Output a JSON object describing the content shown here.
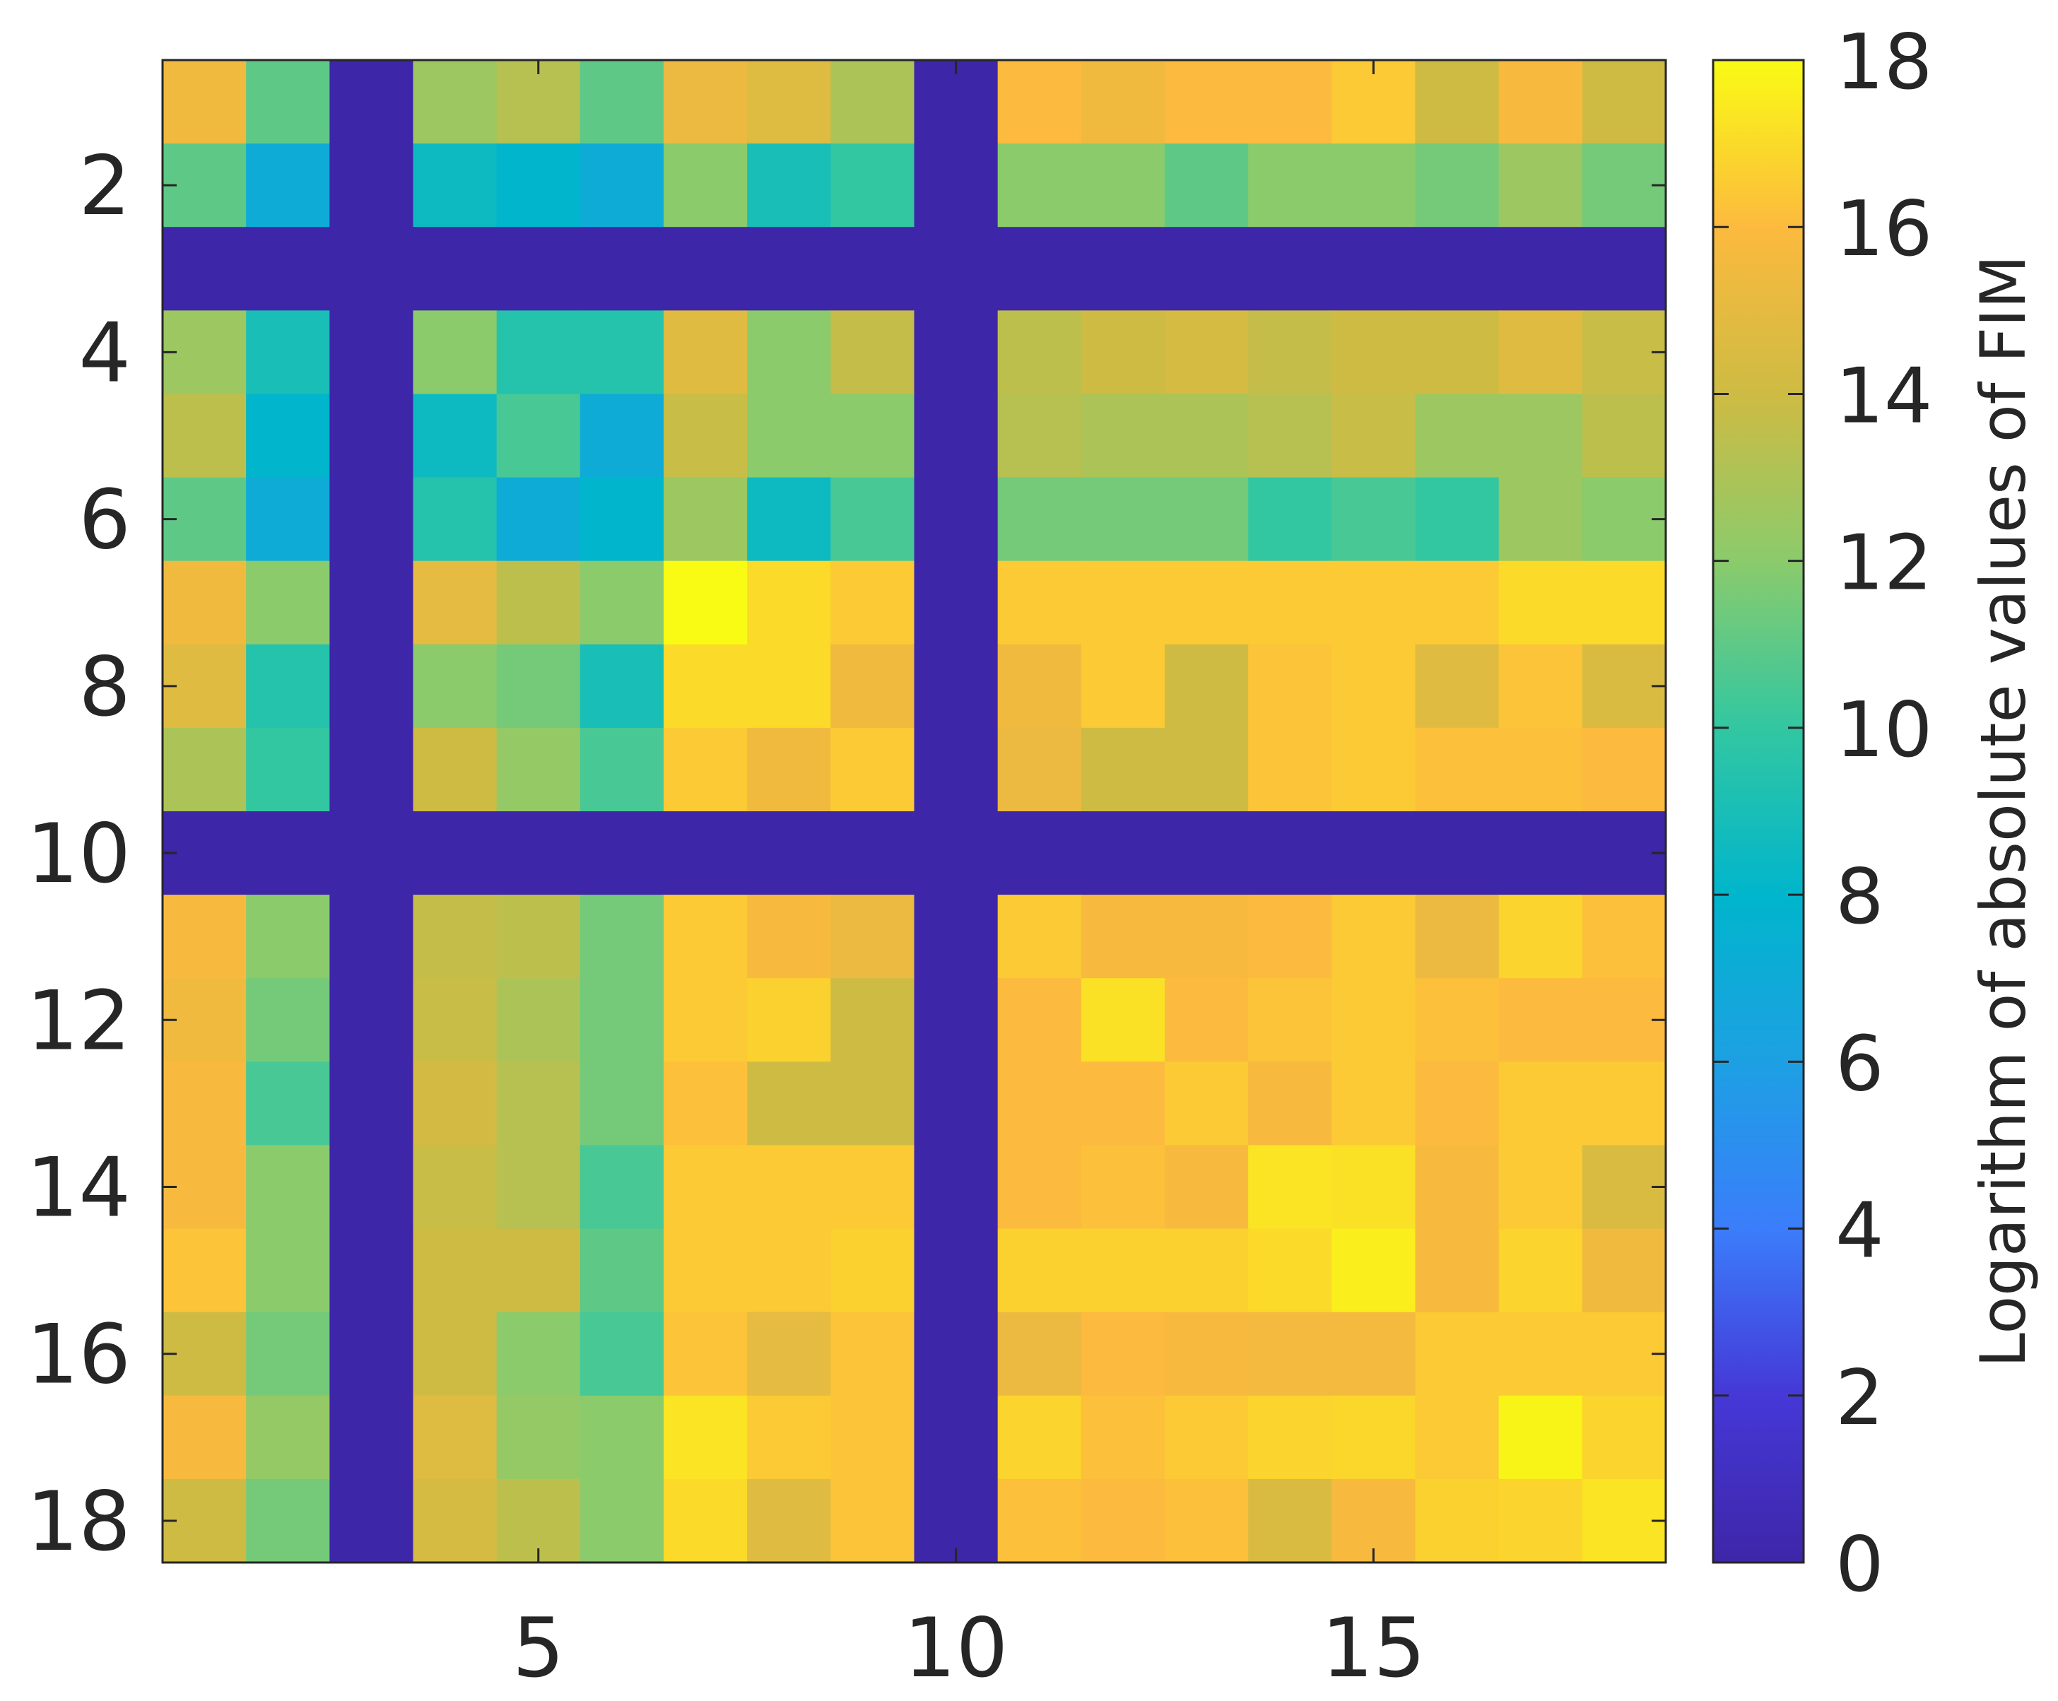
{
  "chart_data": {
    "type": "heatmap",
    "title": "",
    "xlabel": "",
    "ylabel": "",
    "colorbar_label": "Logarithm of absolute values of FIM",
    "clim": [
      0,
      18
    ],
    "x_ticks": [
      5,
      10,
      15
    ],
    "y_ticks": [
      2,
      4,
      6,
      8,
      10,
      12,
      14,
      16,
      18
    ],
    "colorbar_ticks": [
      0,
      2,
      4,
      6,
      8,
      10,
      12,
      14,
      16,
      18
    ],
    "x_tick_labels": [
      "5",
      "10",
      "15"
    ],
    "y_tick_labels": [
      "2",
      "4",
      "6",
      "8",
      "10",
      "12",
      "14",
      "16",
      "18"
    ],
    "colorbar_tick_labels": [
      "0",
      "2",
      "4",
      "6",
      "8",
      "10",
      "12",
      "14",
      "16",
      "18"
    ],
    "colormap": "parula",
    "values": [
      [
        15.5,
        11,
        0,
        12.5,
        13.3,
        11,
        15.3,
        14.7,
        13,
        0,
        16,
        15.5,
        16,
        16,
        16.5,
        14,
        15.8,
        14
      ],
      [
        11,
        7,
        0,
        8.5,
        8,
        7,
        12,
        9,
        10,
        0,
        12,
        12,
        11,
        12,
        12,
        11.5,
        12.5,
        11.5
      ],
      [
        0,
        0,
        0,
        0,
        0,
        0,
        0,
        0,
        0,
        0,
        0,
        0,
        0,
        0,
        0,
        0,
        0,
        0
      ],
      [
        12.5,
        9,
        0,
        12,
        9.5,
        9.5,
        14.8,
        12,
        13.7,
        0,
        13.5,
        14,
        14.3,
        13.7,
        14,
        14,
        14.8,
        13.8
      ],
      [
        13.5,
        8,
        0,
        8.5,
        10.5,
        7,
        13.8,
        12,
        12,
        0,
        13.3,
        13,
        13,
        13.3,
        13.8,
        12.5,
        12.5,
        13.5
      ],
      [
        11,
        7,
        0,
        9.5,
        7,
        8,
        12.5,
        8.5,
        10.5,
        0,
        11.5,
        11.5,
        11.5,
        10,
        10.5,
        10,
        12.5,
        12
      ],
      [
        15.5,
        12,
        0,
        15,
        13.5,
        12,
        18,
        17,
        16.5,
        0,
        16.5,
        16.5,
        16.5,
        16.5,
        16.5,
        16.5,
        17,
        17
      ],
      [
        14.8,
        9.5,
        0,
        12,
        11.5,
        9,
        17,
        17,
        15.5,
        0,
        15.5,
        16.5,
        14,
        16.3,
        16.5,
        14.8,
        16.3,
        14.5
      ],
      [
        13,
        10,
        0,
        14,
        12.3,
        10.5,
        16.5,
        15.5,
        16.5,
        0,
        15.3,
        14,
        14,
        16.3,
        16.5,
        16.2,
        16.2,
        16
      ],
      [
        0,
        0,
        0,
        0,
        0,
        0,
        0,
        0,
        0,
        0,
        0,
        0,
        0,
        0,
        0,
        0,
        0,
        0
      ],
      [
        15.8,
        12,
        0,
        13.7,
        13.5,
        11.5,
        16.5,
        15.8,
        15.3,
        0,
        16.5,
        15.8,
        15.8,
        16,
        16.5,
        15.3,
        16.8,
        16.2
      ],
      [
        15.5,
        11.5,
        0,
        13.8,
        13,
        11.5,
        16.5,
        16.7,
        14,
        0,
        16,
        17.2,
        16,
        16.3,
        16.5,
        16.2,
        16,
        16
      ],
      [
        15.8,
        10.5,
        0,
        14.2,
        13.3,
        11.5,
        16.2,
        14,
        14,
        0,
        16,
        16,
        16.5,
        15.8,
        16.5,
        16,
        16.5,
        16.5
      ],
      [
        15.8,
        12,
        0,
        13.8,
        13.3,
        10.5,
        16.5,
        16.5,
        16.5,
        0,
        16,
        16.2,
        15.8,
        17.3,
        17.2,
        15.8,
        16.5,
        14.5
      ],
      [
        16.3,
        12,
        0,
        14,
        14,
        11,
        16.5,
        16.5,
        16.7,
        0,
        16.7,
        16.7,
        16.7,
        17,
        17.6,
        15.8,
        16.8,
        15.5
      ],
      [
        14,
        11.5,
        0,
        14,
        12,
        10.5,
        16.3,
        15,
        16.3,
        0,
        15.3,
        16,
        15.8,
        15.6,
        15.6,
        16.5,
        16.5,
        16.5
      ],
      [
        15.8,
        12.3,
        0,
        14.7,
        12.3,
        12,
        17.3,
        16.5,
        16.3,
        0,
        16.8,
        16.2,
        16.5,
        16.8,
        16.9,
        16.5,
        17.8,
        16.8
      ],
      [
        14,
        11.5,
        0,
        14.3,
        13.5,
        12,
        17,
        14.8,
        16.3,
        0,
        16.2,
        16,
        16.2,
        14.5,
        15.8,
        16.7,
        16.8,
        17.3
      ]
    ]
  }
}
